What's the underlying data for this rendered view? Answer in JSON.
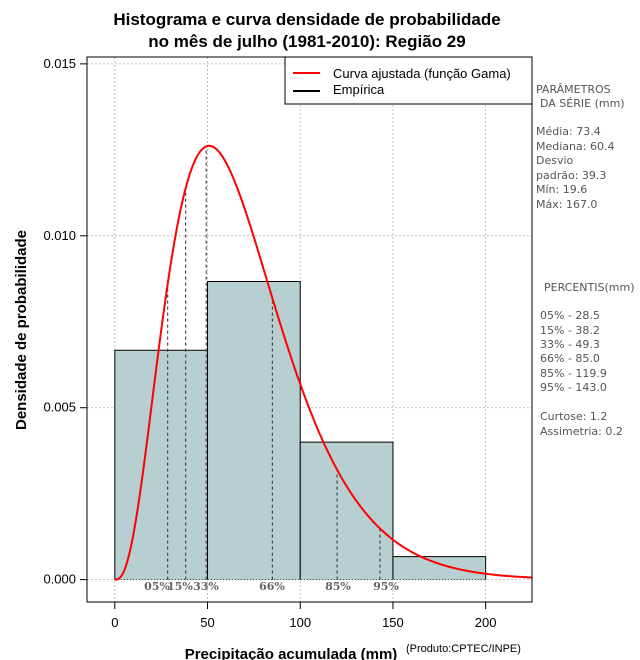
{
  "chart_data": {
    "type": "histogram",
    "title_lines": [
      "Histograma e curva densidade de probabilidade",
      "no mês de julho (1981-2010): Região 29"
    ],
    "xlabel": "Precipitação acumulada (mm)",
    "ylabel": "Densidade de probabilidade",
    "credit": "(Produto:CPTEC/INPE)",
    "xlim": [
      -15,
      225
    ],
    "ylim": [
      -0.00065,
      0.0152
    ],
    "x_ticks": [
      0,
      50,
      100,
      150,
      200
    ],
    "x_tick_labels": [
      "0",
      "50",
      "100",
      "150",
      "200"
    ],
    "y_ticks": [
      0,
      0.005,
      0.01,
      0.015
    ],
    "y_tick_labels": [
      "0.000",
      "0.005",
      "0.010",
      "0.015"
    ],
    "grid": true,
    "bins": [
      {
        "start": 0,
        "end": 50,
        "density": 0.00667
      },
      {
        "start": 50,
        "end": 100,
        "density": 0.00867
      },
      {
        "start": 100,
        "end": 150,
        "density": 0.004
      },
      {
        "start": 150,
        "end": 200,
        "density": 0.00067
      }
    ],
    "gamma_fit": {
      "shape": 3.75,
      "scale": 18.5,
      "x_range": [
        0,
        225
      ]
    },
    "percentiles": [
      {
        "label": "05%",
        "value": 28.5
      },
      {
        "label": "15%",
        "value": 38.2
      },
      {
        "label": "33%",
        "value": 49.3
      },
      {
        "label": "66%",
        "value": 85.0
      },
      {
        "label": "85%",
        "value": 119.9
      },
      {
        "label": "95%",
        "value": 143.0
      }
    ],
    "legend": {
      "position": "top-right",
      "entries": [
        {
          "label": "Curva ajustada (função Gama)",
          "color": "#ff0000"
        },
        {
          "label": "Empírica",
          "color": "#000000"
        }
      ]
    },
    "colors": {
      "bar_fill": "#b7cfd0",
      "curve": "#ff0000",
      "grid": "#b0b0b0"
    }
  },
  "side_panel": {
    "params_title": [
      "PARÂMETROS",
      "DA SÉRIE (mm)"
    ],
    "params": [
      "Média:  73.4",
      "Mediana:  60.4",
      "Desvio",
      "padrão:  39.3",
      "Mín:  19.6",
      "Máx:  167.0"
    ],
    "percentis_title": "PERCENTIS(mm)",
    "percentis": [
      "05% -  28.5",
      "15% -  38.2",
      "33% -  49.3",
      "66% -  85.0",
      "85% -  119.9",
      "95% -  143.0"
    ],
    "stats": [
      "Curtose:  1.2",
      "Assimetria:  0.2"
    ]
  }
}
